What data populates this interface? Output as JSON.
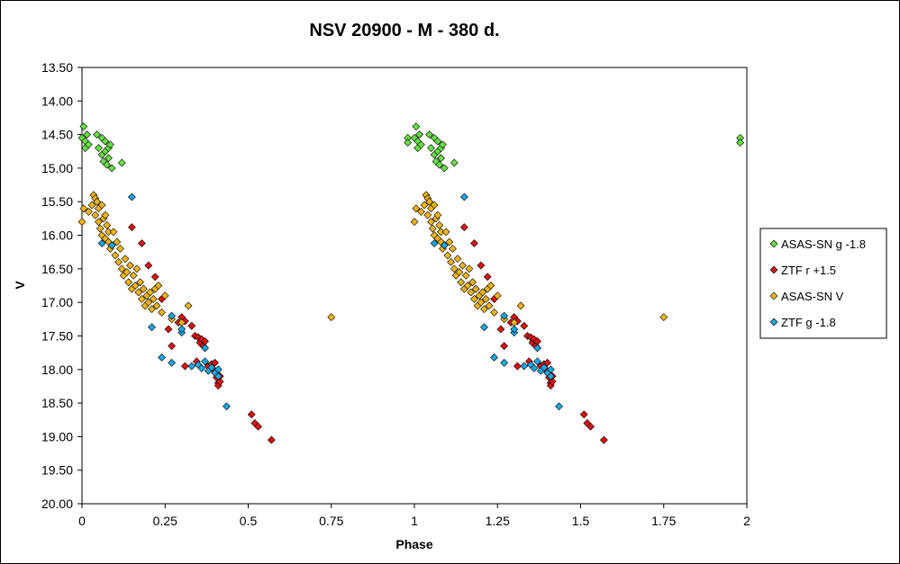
{
  "chart_data": {
    "type": "scatter",
    "title": "NSV 20900 - M - 380 d.",
    "xlabel": "Phase",
    "ylabel": "V",
    "xlim": [
      0,
      2
    ],
    "ylim": [
      13.5,
      20.0
    ],
    "y_inverted": true,
    "x_ticks": [
      "0",
      "0.25",
      "0.5",
      "0.75",
      "1",
      "1.25",
      "1.5",
      "1.75",
      "2"
    ],
    "y_ticks": [
      "13.50",
      "14.00",
      "14.50",
      "15.00",
      "15.50",
      "16.00",
      "16.50",
      "17.00",
      "17.50",
      "18.00",
      "18.50",
      "19.00",
      "19.50",
      "20.00"
    ],
    "grid": false,
    "legend_position": "right",
    "marker": "diamond",
    "phase_repeat": 1,
    "series": [
      {
        "name": "ASAS-SN g -1.8",
        "color": "#66dd44",
        "points": [
          [
            0.0,
            14.55
          ],
          [
            0.005,
            14.38
          ],
          [
            0.01,
            14.6
          ],
          [
            0.01,
            14.7
          ],
          [
            0.015,
            14.5
          ],
          [
            0.02,
            14.65
          ],
          [
            0.045,
            14.5
          ],
          [
            0.05,
            14.7
          ],
          [
            0.06,
            14.55
          ],
          [
            0.06,
            14.8
          ],
          [
            0.065,
            14.9
          ],
          [
            0.07,
            14.6
          ],
          [
            0.07,
            14.75
          ],
          [
            0.075,
            14.95
          ],
          [
            0.08,
            14.7
          ],
          [
            0.08,
            14.85
          ],
          [
            0.085,
            14.65
          ],
          [
            0.09,
            15.0
          ],
          [
            0.12,
            14.92
          ],
          [
            0.98,
            14.55
          ],
          [
            0.98,
            14.62
          ]
        ]
      },
      {
        "name": "ZTF r +1.5",
        "color": "#dd1111",
        "points": [
          [
            0.15,
            15.88
          ],
          [
            0.18,
            16.12
          ],
          [
            0.2,
            16.45
          ],
          [
            0.22,
            16.62
          ],
          [
            0.24,
            16.95
          ],
          [
            0.26,
            17.4
          ],
          [
            0.27,
            17.65
          ],
          [
            0.29,
            17.3
          ],
          [
            0.3,
            17.22
          ],
          [
            0.31,
            17.28
          ],
          [
            0.31,
            17.95
          ],
          [
            0.33,
            17.35
          ],
          [
            0.34,
            17.5
          ],
          [
            0.345,
            17.88
          ],
          [
            0.35,
            17.52
          ],
          [
            0.355,
            17.6
          ],
          [
            0.36,
            17.55
          ],
          [
            0.365,
            17.65
          ],
          [
            0.37,
            17.58
          ],
          [
            0.38,
            17.95
          ],
          [
            0.39,
            17.92
          ],
          [
            0.395,
            18.0
          ],
          [
            0.4,
            17.9
          ],
          [
            0.405,
            18.12
          ],
          [
            0.41,
            18.2
          ],
          [
            0.41,
            18.24
          ],
          [
            0.415,
            18.18
          ],
          [
            0.415,
            18.1
          ],
          [
            0.51,
            18.67
          ],
          [
            0.52,
            18.8
          ],
          [
            0.53,
            18.85
          ],
          [
            0.57,
            19.05
          ]
        ]
      },
      {
        "name": "ASAS-SN V",
        "color": "#f0b418",
        "points": [
          [
            0.0,
            15.8
          ],
          [
            0.005,
            15.6
          ],
          [
            0.02,
            15.65
          ],
          [
            0.03,
            15.55
          ],
          [
            0.035,
            15.4
          ],
          [
            0.04,
            15.45
          ],
          [
            0.04,
            15.7
          ],
          [
            0.045,
            15.5
          ],
          [
            0.05,
            15.8
          ],
          [
            0.05,
            15.6
          ],
          [
            0.055,
            15.9
          ],
          [
            0.06,
            15.55
          ],
          [
            0.06,
            16.0
          ],
          [
            0.065,
            15.75
          ],
          [
            0.07,
            15.7
          ],
          [
            0.07,
            16.05
          ],
          [
            0.075,
            15.85
          ],
          [
            0.08,
            16.1
          ],
          [
            0.08,
            15.95
          ],
          [
            0.085,
            16.2
          ],
          [
            0.09,
            16.15
          ],
          [
            0.095,
            15.95
          ],
          [
            0.1,
            16.3
          ],
          [
            0.105,
            16.1
          ],
          [
            0.11,
            16.4
          ],
          [
            0.115,
            16.2
          ],
          [
            0.12,
            16.5
          ],
          [
            0.125,
            16.6
          ],
          [
            0.13,
            16.35
          ],
          [
            0.135,
            16.55
          ],
          [
            0.14,
            16.7
          ],
          [
            0.145,
            16.45
          ],
          [
            0.15,
            16.8
          ],
          [
            0.155,
            16.6
          ],
          [
            0.16,
            16.75
          ],
          [
            0.165,
            16.5
          ],
          [
            0.17,
            16.85
          ],
          [
            0.175,
            16.7
          ],
          [
            0.18,
            16.95
          ],
          [
            0.185,
            16.8
          ],
          [
            0.19,
            17.05
          ],
          [
            0.195,
            16.9
          ],
          [
            0.2,
            17.0
          ],
          [
            0.205,
            16.85
          ],
          [
            0.21,
            17.1
          ],
          [
            0.215,
            16.95
          ],
          [
            0.22,
            16.8
          ],
          [
            0.225,
            17.05
          ],
          [
            0.23,
            16.75
          ],
          [
            0.24,
            17.15
          ],
          [
            0.25,
            16.9
          ],
          [
            0.27,
            17.25
          ],
          [
            0.3,
            17.3
          ],
          [
            0.32,
            17.05
          ],
          [
            0.75,
            17.22
          ]
        ]
      },
      {
        "name": "ZTF g -1.8",
        "color": "#1aa6e0",
        "points": [
          [
            0.15,
            15.43
          ],
          [
            0.06,
            16.12
          ],
          [
            0.09,
            16.15
          ],
          [
            0.21,
            17.37
          ],
          [
            0.24,
            17.82
          ],
          [
            0.27,
            17.9
          ],
          [
            0.27,
            17.2
          ],
          [
            0.3,
            17.45
          ],
          [
            0.3,
            17.4
          ],
          [
            0.33,
            17.95
          ],
          [
            0.35,
            17.93
          ],
          [
            0.36,
            17.98
          ],
          [
            0.37,
            17.68
          ],
          [
            0.37,
            17.88
          ],
          [
            0.38,
            18.02
          ],
          [
            0.39,
            17.97
          ],
          [
            0.4,
            18.05
          ],
          [
            0.41,
            18.1
          ],
          [
            0.41,
            18.0
          ],
          [
            0.435,
            18.55
          ]
        ]
      }
    ]
  }
}
